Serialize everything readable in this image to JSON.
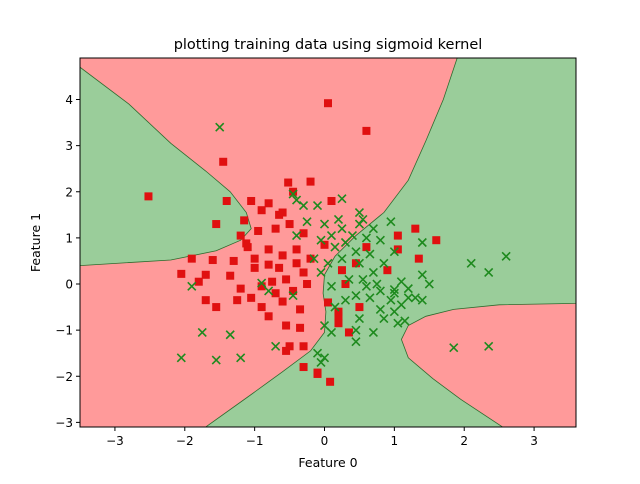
{
  "chart_data": {
    "type": "scatter",
    "title": "plotting training data using sigmoid kernel",
    "xlabel": "Feature 0",
    "ylabel": "Feature 1",
    "xlim": [
      -3.5,
      3.6
    ],
    "ylim": [
      -3.1,
      4.9
    ],
    "xticks": [
      -3,
      -2,
      -1,
      0,
      1,
      2,
      3
    ],
    "yticks": [
      -3,
      -2,
      -1,
      0,
      1,
      2,
      3,
      4
    ],
    "xtick_labels": [
      "−3",
      "−2",
      "−1",
      "0",
      "1",
      "2",
      "3"
    ],
    "ytick_labels": [
      "−3",
      "−2",
      "−1",
      "0",
      "1",
      "2",
      "3",
      "4"
    ],
    "grid": false,
    "legend": "none",
    "background_regions": {
      "class0_color": "#ff9a9a",
      "class1_color": "#9acd9a",
      "boundary_color": "#2e6b2e"
    },
    "series": [
      {
        "marker": "square",
        "color": "#e01010",
        "points": [
          [
            0.05,
            3.92
          ],
          [
            0.6,
            3.32
          ],
          [
            -1.45,
            2.65
          ],
          [
            -2.52,
            1.9
          ],
          [
            -0.52,
            2.2
          ],
          [
            -0.2,
            2.22
          ],
          [
            -0.45,
            2.0
          ],
          [
            -1.4,
            1.8
          ],
          [
            -1.05,
            1.8
          ],
          [
            -0.8,
            1.75
          ],
          [
            -0.9,
            1.6
          ],
          [
            0.1,
            1.8
          ],
          [
            -0.6,
            1.55
          ],
          [
            -1.55,
            1.3
          ],
          [
            -1.15,
            1.38
          ],
          [
            -0.5,
            1.3
          ],
          [
            -0.65,
            1.5
          ],
          [
            -1.2,
            1.05
          ],
          [
            -1.12,
            0.88
          ],
          [
            -0.7,
            1.2
          ],
          [
            -0.3,
            1.1
          ],
          [
            -0.95,
            1.15
          ],
          [
            -1.6,
            0.52
          ],
          [
            -1.1,
            0.8
          ],
          [
            -0.8,
            0.75
          ],
          [
            -0.4,
            0.75
          ],
          [
            -0.6,
            0.62
          ],
          [
            -1.0,
            0.55
          ],
          [
            -1.9,
            0.55
          ],
          [
            -1.3,
            0.5
          ],
          [
            -0.8,
            0.42
          ],
          [
            -1.0,
            0.35
          ],
          [
            -0.65,
            0.35
          ],
          [
            -0.4,
            0.45
          ],
          [
            -0.2,
            0.55
          ],
          [
            0.0,
            0.85
          ],
          [
            -1.7,
            0.2
          ],
          [
            -2.05,
            0.22
          ],
          [
            -0.3,
            0.25
          ],
          [
            -1.8,
            0.05
          ],
          [
            -1.35,
            0.18
          ],
          [
            -0.75,
            0.05
          ],
          [
            -0.55,
            0.1
          ],
          [
            -0.25,
            0.0
          ],
          [
            -0.9,
            -0.05
          ],
          [
            -1.2,
            -0.1
          ],
          [
            -0.45,
            -0.15
          ],
          [
            -0.7,
            -0.2
          ],
          [
            -1.05,
            -0.3
          ],
          [
            -1.25,
            -0.35
          ],
          [
            -0.6,
            -0.38
          ],
          [
            -0.9,
            -0.5
          ],
          [
            -1.7,
            -0.35
          ],
          [
            -1.55,
            -0.5
          ],
          [
            0.05,
            -0.4
          ],
          [
            -0.35,
            -0.55
          ],
          [
            -0.8,
            -0.7
          ],
          [
            -0.55,
            -0.9
          ],
          [
            -0.35,
            -0.95
          ],
          [
            0.2,
            -0.7
          ],
          [
            0.2,
            -0.85
          ],
          [
            0.5,
            -0.5
          ],
          [
            0.35,
            -1.05
          ],
          [
            -0.5,
            -1.35
          ],
          [
            -0.3,
            -1.35
          ],
          [
            -0.55,
            -1.45
          ],
          [
            -0.3,
            -1.8
          ],
          [
            -0.1,
            -1.92
          ],
          [
            -0.1,
            -1.95
          ],
          [
            0.08,
            -2.12
          ],
          [
            0.3,
            0.0
          ],
          [
            0.25,
            0.3
          ],
          [
            0.45,
            0.45
          ],
          [
            0.6,
            0.8
          ],
          [
            0.9,
            0.3
          ],
          [
            1.05,
            0.75
          ],
          [
            1.05,
            1.05
          ],
          [
            1.3,
            1.2
          ],
          [
            1.6,
            0.95
          ],
          [
            1.35,
            0.55
          ],
          [
            0.2,
            -0.6
          ]
        ]
      },
      {
        "marker": "x",
        "color": "#1e8a1e",
        "points": [
          [
            -1.5,
            3.4
          ],
          [
            -0.45,
            1.95
          ],
          [
            -0.4,
            1.82
          ],
          [
            -0.3,
            1.7
          ],
          [
            -0.1,
            1.7
          ],
          [
            0.25,
            1.85
          ],
          [
            0.2,
            1.4
          ],
          [
            0.5,
            1.55
          ],
          [
            0.55,
            1.4
          ],
          [
            -0.25,
            1.35
          ],
          [
            0.0,
            1.3
          ],
          [
            0.25,
            1.2
          ],
          [
            0.4,
            1.05
          ],
          [
            0.5,
            1.3
          ],
          [
            0.7,
            1.2
          ],
          [
            0.95,
            1.35
          ],
          [
            0.1,
            1.05
          ],
          [
            0.3,
            0.9
          ],
          [
            0.6,
            1.0
          ],
          [
            0.8,
            0.95
          ],
          [
            -0.05,
            0.95
          ],
          [
            0.15,
            0.8
          ],
          [
            0.45,
            0.7
          ],
          [
            0.65,
            0.65
          ],
          [
            0.85,
            0.45
          ],
          [
            1.0,
            0.7
          ],
          [
            1.4,
            0.9
          ],
          [
            -0.15,
            0.55
          ],
          [
            0.05,
            0.45
          ],
          [
            0.25,
            0.55
          ],
          [
            0.5,
            0.45
          ],
          [
            0.7,
            0.25
          ],
          [
            -0.05,
            0.25
          ],
          [
            0.35,
            0.1
          ],
          [
            0.55,
            0.1
          ],
          [
            0.75,
            0.0
          ],
          [
            1.1,
            0.05
          ],
          [
            1.4,
            0.2
          ],
          [
            1.5,
            0.0
          ],
          [
            0.1,
            -0.05
          ],
          [
            0.6,
            -0.05
          ],
          [
            0.8,
            -0.15
          ],
          [
            1.0,
            -0.2
          ],
          [
            1.2,
            -0.1
          ],
          [
            0.45,
            -0.25
          ],
          [
            0.65,
            -0.3
          ],
          [
            0.95,
            -0.35
          ],
          [
            1.1,
            -0.45
          ],
          [
            1.3,
            -0.3
          ],
          [
            1.4,
            -0.35
          ],
          [
            0.3,
            -0.35
          ],
          [
            0.15,
            -0.5
          ],
          [
            0.5,
            -0.75
          ],
          [
            0.8,
            -0.55
          ],
          [
            1.0,
            -0.6
          ],
          [
            1.05,
            -0.85
          ],
          [
            1.15,
            -0.8
          ],
          [
            0.7,
            -1.05
          ],
          [
            0.45,
            -1.0
          ],
          [
            0.1,
            -1.05
          ],
          [
            0.0,
            -0.9
          ],
          [
            -0.1,
            -1.5
          ],
          [
            0.0,
            -1.6
          ],
          [
            -0.05,
            -1.7
          ],
          [
            0.45,
            -1.25
          ],
          [
            -0.7,
            -1.35
          ],
          [
            -1.2,
            -1.6
          ],
          [
            -1.35,
            -1.1
          ],
          [
            -1.55,
            -1.65
          ],
          [
            -1.75,
            -1.05
          ],
          [
            -2.05,
            -1.6
          ],
          [
            -1.9,
            -0.05
          ],
          [
            -0.9,
            0.02
          ],
          [
            -0.45,
            -0.25
          ],
          [
            -0.8,
            -0.15
          ],
          [
            -0.4,
            1.05
          ],
          [
            2.1,
            0.45
          ],
          [
            2.35,
            0.25
          ],
          [
            2.6,
            0.6
          ],
          [
            1.85,
            -1.38
          ],
          [
            2.35,
            -1.35
          ],
          [
            1.0,
            -0.12
          ],
          [
            0.85,
            -0.75
          ],
          [
            1.2,
            -0.3
          ]
        ]
      }
    ]
  }
}
